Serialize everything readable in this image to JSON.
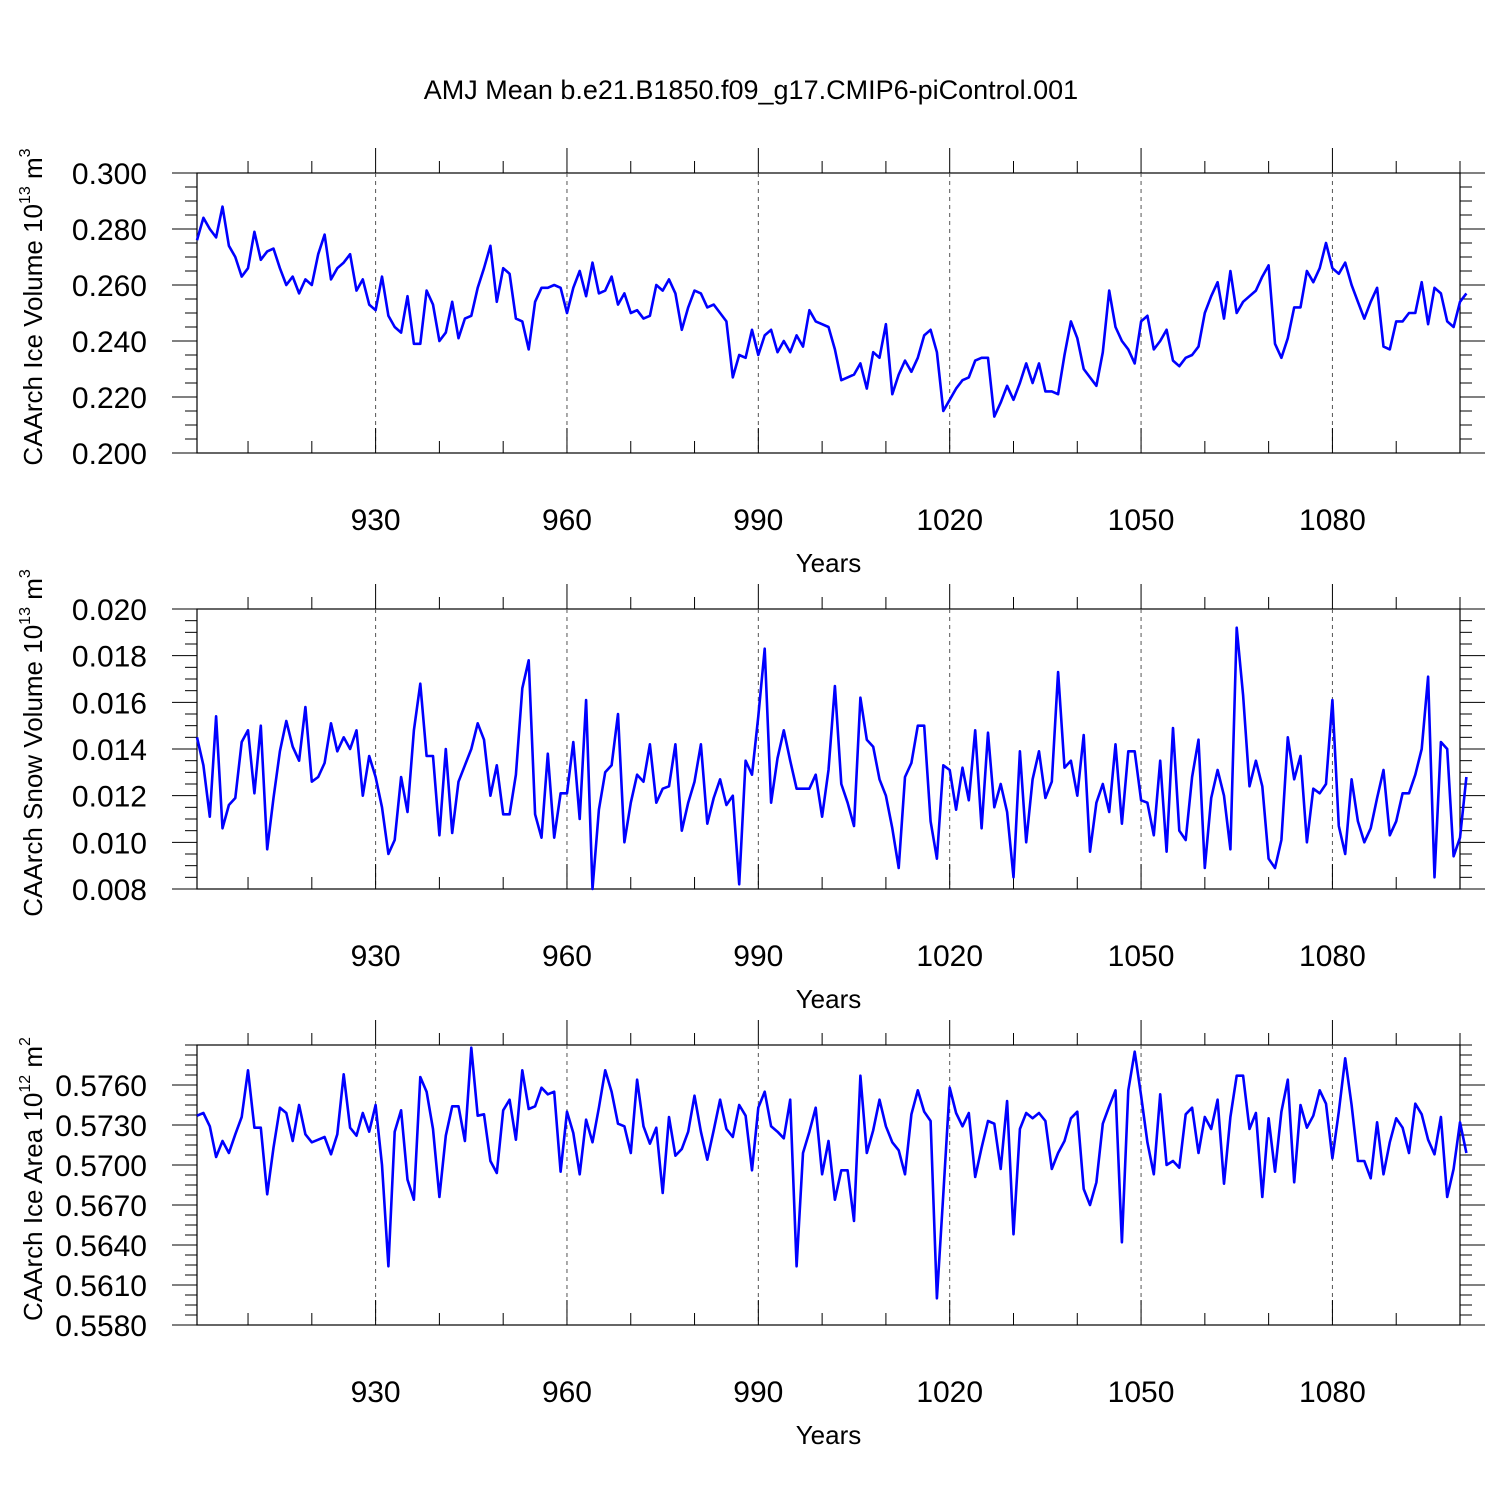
{
  "chart_data": {
    "type": "line",
    "title": "AMJ Mean b.e21.B1850.f09_g17.CMIP6-piControl.001",
    "x_start": 902,
    "xlim": [
      902,
      1100
    ],
    "major_ticks": [
      930,
      960,
      990,
      1020,
      1050,
      1080
    ],
    "grid": "dashed vertical lines at major x ticks",
    "series_color": "#0000ff",
    "panels": [
      {
        "name": "ice-volume",
        "ylabel": "CAArch Ice Volume",
        "ylabel_unit": "10",
        "ylabel_exp": "13",
        "ylabel_unit2": "m",
        "ylabel_unit2_exp": "3",
        "xlabel": "Years",
        "ylim": [
          0.2,
          0.3
        ],
        "y_ticks": [
          "0.200",
          "0.220",
          "0.240",
          "0.260",
          "0.280",
          "0.300"
        ],
        "x_tick_labels": [
          "930",
          "960",
          "990",
          "1020",
          "1050",
          "1080"
        ],
        "values": [
          0.276,
          0.284,
          0.28,
          0.277,
          0.288,
          0.274,
          0.27,
          0.263,
          0.266,
          0.279,
          0.269,
          0.272,
          0.273,
          0.266,
          0.26,
          0.263,
          0.257,
          0.262,
          0.26,
          0.271,
          0.278,
          0.262,
          0.266,
          0.268,
          0.271,
          0.258,
          0.262,
          0.253,
          0.251,
          0.263,
          0.249,
          0.245,
          0.243,
          0.256,
          0.239,
          0.239,
          0.258,
          0.253,
          0.24,
          0.243,
          0.254,
          0.241,
          0.248,
          0.249,
          0.259,
          0.266,
          0.274,
          0.254,
          0.266,
          0.264,
          0.248,
          0.247,
          0.237,
          0.254,
          0.259,
          0.259,
          0.26,
          0.259,
          0.25,
          0.259,
          0.265,
          0.256,
          0.268,
          0.257,
          0.258,
          0.263,
          0.253,
          0.257,
          0.25,
          0.251,
          0.248,
          0.249,
          0.26,
          0.258,
          0.262,
          0.257,
          0.244,
          0.252,
          0.258,
          0.257,
          0.252,
          0.253,
          0.25,
          0.247,
          0.227,
          0.235,
          0.234,
          0.244,
          0.235,
          0.242,
          0.244,
          0.236,
          0.24,
          0.236,
          0.242,
          0.238,
          0.251,
          0.247,
          0.246,
          0.245,
          0.237,
          0.226,
          0.227,
          0.228,
          0.232,
          0.223,
          0.236,
          0.234,
          0.246,
          0.221,
          0.228,
          0.233,
          0.229,
          0.234,
          0.242,
          0.244,
          0.236,
          0.215,
          0.219,
          0.223,
          0.226,
          0.227,
          0.233,
          0.234,
          0.234,
          0.213,
          0.218,
          0.224,
          0.219,
          0.225,
          0.232,
          0.225,
          0.232,
          0.222,
          0.222,
          0.221,
          0.235,
          0.247,
          0.241,
          0.23,
          0.227,
          0.224,
          0.236,
          0.258,
          0.245,
          0.24,
          0.237,
          0.232,
          0.247,
          0.249,
          0.237,
          0.24,
          0.244,
          0.233,
          0.231,
          0.234,
          0.235,
          0.238,
          0.25,
          0.256,
          0.261,
          0.248,
          0.265,
          0.25,
          0.254,
          0.256,
          0.258,
          0.263,
          0.267,
          0.239,
          0.234,
          0.241,
          0.252,
          0.252,
          0.265,
          0.261,
          0.266,
          0.275,
          0.266,
          0.264,
          0.268,
          0.26,
          0.254,
          0.248,
          0.254,
          0.259,
          0.238,
          0.237,
          0.247,
          0.247,
          0.25,
          0.25,
          0.261,
          0.246,
          0.259,
          0.257,
          0.247,
          0.245,
          0.254,
          0.257
        ]
      },
      {
        "name": "snow-volume",
        "ylabel": "CAArch Snow Volume",
        "ylabel_unit": "10",
        "ylabel_exp": "13",
        "ylabel_unit2": "m",
        "ylabel_unit2_exp": "3",
        "xlabel": "Years",
        "ylim": [
          0.008,
          0.02
        ],
        "y_ticks": [
          "0.008",
          "0.010",
          "0.012",
          "0.014",
          "0.016",
          "0.018",
          "0.020"
        ],
        "x_tick_labels": [
          "930",
          "960",
          "990",
          "1020",
          "1050",
          "1080"
        ],
        "values": [
          0.0145,
          0.0133,
          0.0111,
          0.0154,
          0.0106,
          0.0116,
          0.0119,
          0.0143,
          0.0148,
          0.0121,
          0.015,
          0.0097,
          0.0119,
          0.0139,
          0.0152,
          0.0141,
          0.0135,
          0.0158,
          0.0126,
          0.0128,
          0.0134,
          0.0151,
          0.0139,
          0.0145,
          0.014,
          0.0148,
          0.012,
          0.0137,
          0.0128,
          0.0115,
          0.0095,
          0.0101,
          0.0128,
          0.0113,
          0.0148,
          0.0168,
          0.0137,
          0.0137,
          0.0103,
          0.014,
          0.0104,
          0.0126,
          0.0133,
          0.014,
          0.0151,
          0.0144,
          0.012,
          0.0133,
          0.0112,
          0.0112,
          0.0129,
          0.0166,
          0.0178,
          0.0112,
          0.0102,
          0.0138,
          0.0102,
          0.0121,
          0.0121,
          0.0143,
          0.011,
          0.0161,
          0.008,
          0.0114,
          0.013,
          0.0133,
          0.0155,
          0.01,
          0.0117,
          0.0129,
          0.0126,
          0.0142,
          0.0117,
          0.0123,
          0.0124,
          0.0142,
          0.0105,
          0.0117,
          0.0126,
          0.0142,
          0.0108,
          0.0119,
          0.0127,
          0.0116,
          0.012,
          0.0082,
          0.0135,
          0.0129,
          0.0154,
          0.0183,
          0.0117,
          0.0136,
          0.0148,
          0.0135,
          0.0123,
          0.0123,
          0.0123,
          0.0129,
          0.0111,
          0.0131,
          0.0167,
          0.0125,
          0.0117,
          0.0107,
          0.0162,
          0.0144,
          0.0141,
          0.0127,
          0.012,
          0.0106,
          0.0089,
          0.0128,
          0.0134,
          0.015,
          0.015,
          0.0109,
          0.0093,
          0.0133,
          0.0131,
          0.0114,
          0.0132,
          0.0118,
          0.0148,
          0.0106,
          0.0147,
          0.0115,
          0.0125,
          0.0113,
          0.0085,
          0.0139,
          0.01,
          0.0127,
          0.0139,
          0.0119,
          0.0126,
          0.0173,
          0.0132,
          0.0135,
          0.012,
          0.0146,
          0.0096,
          0.0117,
          0.0125,
          0.0113,
          0.0142,
          0.0108,
          0.0139,
          0.0139,
          0.0118,
          0.0117,
          0.0103,
          0.0135,
          0.0096,
          0.0149,
          0.0105,
          0.0101,
          0.0128,
          0.0144,
          0.0089,
          0.0119,
          0.0131,
          0.012,
          0.0097,
          0.0192,
          0.0163,
          0.0124,
          0.0135,
          0.0124,
          0.0093,
          0.0089,
          0.0101,
          0.0145,
          0.0127,
          0.0137,
          0.01,
          0.0123,
          0.0121,
          0.0125,
          0.0161,
          0.0107,
          0.0095,
          0.0127,
          0.0109,
          0.01,
          0.0106,
          0.0119,
          0.0131,
          0.0103,
          0.0109,
          0.0121,
          0.0121,
          0.0129,
          0.014,
          0.0171,
          0.0085,
          0.0143,
          0.014,
          0.0094,
          0.0102,
          0.0128
        ]
      },
      {
        "name": "ice-area",
        "ylabel": "CAArch Ice Area",
        "ylabel_unit": "10",
        "ylabel_exp": "12",
        "ylabel_unit2": "m",
        "ylabel_unit2_exp": "2",
        "xlabel": "Years",
        "ylim": [
          0.558,
          0.579
        ],
        "y_ticks": [
          "0.5580",
          "0.5610",
          "0.5640",
          "0.5670",
          "0.5700",
          "0.5730",
          "0.5760"
        ],
        "x_tick_labels": [
          "930",
          "960",
          "990",
          "1020",
          "1050",
          "1080"
        ],
        "values": [
          0.5737,
          0.5739,
          0.5729,
          0.5706,
          0.5718,
          0.5709,
          0.5723,
          0.5736,
          0.5771,
          0.5728,
          0.5728,
          0.5678,
          0.5713,
          0.5743,
          0.5739,
          0.5718,
          0.5745,
          0.5723,
          0.5717,
          0.5719,
          0.5721,
          0.5708,
          0.5723,
          0.5768,
          0.5728,
          0.5722,
          0.5739,
          0.5725,
          0.5745,
          0.57,
          0.5624,
          0.5725,
          0.5741,
          0.5689,
          0.5674,
          0.5766,
          0.5755,
          0.5727,
          0.5676,
          0.5722,
          0.5744,
          0.5744,
          0.5718,
          0.5788,
          0.5737,
          0.5738,
          0.5703,
          0.5694,
          0.5741,
          0.5749,
          0.5719,
          0.5771,
          0.5742,
          0.5744,
          0.5758,
          0.5753,
          0.5755,
          0.5695,
          0.574,
          0.5724,
          0.5693,
          0.5734,
          0.5717,
          0.5743,
          0.5771,
          0.5755,
          0.5731,
          0.5729,
          0.5709,
          0.5764,
          0.5729,
          0.5716,
          0.5728,
          0.5679,
          0.5736,
          0.5707,
          0.5712,
          0.5725,
          0.5752,
          0.5725,
          0.5704,
          0.5726,
          0.5749,
          0.5727,
          0.5721,
          0.5745,
          0.5737,
          0.5696,
          0.5743,
          0.5755,
          0.5729,
          0.5725,
          0.572,
          0.5749,
          0.5624,
          0.5709,
          0.5725,
          0.5743,
          0.5693,
          0.5718,
          0.5674,
          0.5696,
          0.5696,
          0.5658,
          0.5767,
          0.5709,
          0.5726,
          0.5749,
          0.5729,
          0.5717,
          0.5711,
          0.5693,
          0.5738,
          0.5756,
          0.574,
          0.5733,
          0.56,
          0.5678,
          0.5758,
          0.5739,
          0.5729,
          0.5739,
          0.5691,
          0.5713,
          0.5733,
          0.5731,
          0.5697,
          0.5748,
          0.5648,
          0.5727,
          0.5739,
          0.5735,
          0.5739,
          0.5733,
          0.5697,
          0.5709,
          0.5718,
          0.5735,
          0.574,
          0.5682,
          0.567,
          0.5687,
          0.5731,
          0.5744,
          0.5756,
          0.5642,
          0.5756,
          0.5785,
          0.5752,
          0.5717,
          0.5693,
          0.5753,
          0.57,
          0.5703,
          0.5698,
          0.5738,
          0.5743,
          0.5709,
          0.5736,
          0.5727,
          0.5749,
          0.5686,
          0.5736,
          0.5767,
          0.5767,
          0.5727,
          0.5739,
          0.5676,
          0.5735,
          0.5695,
          0.574,
          0.5764,
          0.5687,
          0.5745,
          0.5728,
          0.5737,
          0.5756,
          0.5746,
          0.5705,
          0.574,
          0.578,
          0.5745,
          0.5703,
          0.5703,
          0.569,
          0.5732,
          0.5693,
          0.5717,
          0.5735,
          0.5728,
          0.5709,
          0.5746,
          0.5738,
          0.5719,
          0.5708,
          0.5736,
          0.5676,
          0.5697,
          0.5732,
          0.5709
        ]
      }
    ]
  }
}
